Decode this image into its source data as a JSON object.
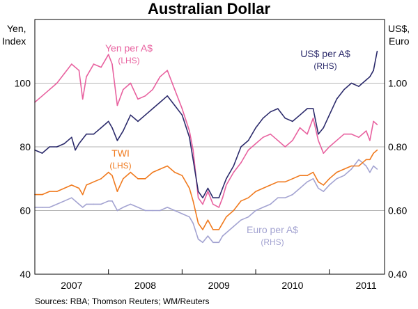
{
  "chart_data": {
    "type": "line",
    "title": "Australian Dollar",
    "left_axis": {
      "label_lines": [
        "Yen,",
        "Index"
      ],
      "range": [
        40,
        120
      ],
      "ticks": [
        40,
        60,
        80,
        100
      ]
    },
    "right_axis": {
      "label_lines": [
        "US$,",
        "Euro"
      ],
      "range": [
        0.4,
        1.2
      ],
      "ticks": [
        "0.40",
        "0.60",
        "0.80",
        "1.00"
      ],
      "tick_values": [
        0.4,
        0.6,
        0.8,
        1.0
      ]
    },
    "x_axis": {
      "range": [
        2006.5,
        2011.25
      ],
      "tick_labels": [
        "2007",
        "2008",
        "2009",
        "2010",
        "2011"
      ],
      "label_positions": [
        2007.0,
        2008.0,
        2009.0,
        2010.0,
        2011.0
      ],
      "dividers": [
        2007.5,
        2008.5,
        2009.5,
        2010.5
      ]
    },
    "grid": true,
    "source": "Sources: RBA; Thomson Reuters; WM/Reuters",
    "series": [
      {
        "name": "Yen per A$",
        "note": "(LHS)",
        "axis": "left",
        "color": "#e8619f",
        "points": [
          [
            2006.5,
            94
          ],
          [
            2006.6,
            96
          ],
          [
            2006.7,
            98
          ],
          [
            2006.8,
            100
          ],
          [
            2006.9,
            103
          ],
          [
            2007.0,
            106
          ],
          [
            2007.1,
            104
          ],
          [
            2007.15,
            95
          ],
          [
            2007.2,
            102
          ],
          [
            2007.3,
            106
          ],
          [
            2007.4,
            105
          ],
          [
            2007.5,
            109
          ],
          [
            2007.55,
            106
          ],
          [
            2007.62,
            93
          ],
          [
            2007.7,
            98
          ],
          [
            2007.8,
            100
          ],
          [
            2007.9,
            95
          ],
          [
            2008.0,
            96
          ],
          [
            2008.1,
            98
          ],
          [
            2008.2,
            102
          ],
          [
            2008.3,
            104
          ],
          [
            2008.4,
            98
          ],
          [
            2008.5,
            92
          ],
          [
            2008.6,
            85
          ],
          [
            2008.65,
            79
          ],
          [
            2008.72,
            64
          ],
          [
            2008.78,
            62
          ],
          [
            2008.85,
            66
          ],
          [
            2008.92,
            62
          ],
          [
            2009.0,
            61
          ],
          [
            2009.05,
            64
          ],
          [
            2009.1,
            68
          ],
          [
            2009.2,
            72
          ],
          [
            2009.3,
            75
          ],
          [
            2009.4,
            79
          ],
          [
            2009.5,
            81
          ],
          [
            2009.6,
            83
          ],
          [
            2009.7,
            84
          ],
          [
            2009.8,
            82
          ],
          [
            2009.9,
            80
          ],
          [
            2010.0,
            82
          ],
          [
            2010.1,
            86
          ],
          [
            2010.2,
            84
          ],
          [
            2010.28,
            89
          ],
          [
            2010.35,
            82
          ],
          [
            2010.42,
            78
          ],
          [
            2010.5,
            80
          ],
          [
            2010.6,
            82
          ],
          [
            2010.7,
            84
          ],
          [
            2010.8,
            84
          ],
          [
            2010.9,
            83
          ],
          [
            2011.0,
            85
          ],
          [
            2011.05,
            82
          ],
          [
            2011.1,
            88
          ],
          [
            2011.15,
            87
          ]
        ]
      },
      {
        "name": "US$ per A$",
        "note": "(RHS)",
        "axis": "right",
        "color": "#2b2a6b",
        "points": [
          [
            2006.5,
            0.79
          ],
          [
            2006.6,
            0.78
          ],
          [
            2006.7,
            0.8
          ],
          [
            2006.8,
            0.8
          ],
          [
            2006.9,
            0.81
          ],
          [
            2007.0,
            0.83
          ],
          [
            2007.05,
            0.79
          ],
          [
            2007.1,
            0.81
          ],
          [
            2007.2,
            0.84
          ],
          [
            2007.3,
            0.84
          ],
          [
            2007.4,
            0.86
          ],
          [
            2007.5,
            0.88
          ],
          [
            2007.55,
            0.86
          ],
          [
            2007.62,
            0.82
          ],
          [
            2007.7,
            0.85
          ],
          [
            2007.8,
            0.9
          ],
          [
            2007.9,
            0.88
          ],
          [
            2008.0,
            0.9
          ],
          [
            2008.1,
            0.92
          ],
          [
            2008.2,
            0.94
          ],
          [
            2008.3,
            0.96
          ],
          [
            2008.4,
            0.93
          ],
          [
            2008.5,
            0.9
          ],
          [
            2008.6,
            0.83
          ],
          [
            2008.65,
            0.76
          ],
          [
            2008.72,
            0.66
          ],
          [
            2008.78,
            0.64
          ],
          [
            2008.85,
            0.67
          ],
          [
            2008.92,
            0.64
          ],
          [
            2009.0,
            0.64
          ],
          [
            2009.05,
            0.67
          ],
          [
            2009.1,
            0.7
          ],
          [
            2009.2,
            0.74
          ],
          [
            2009.3,
            0.8
          ],
          [
            2009.4,
            0.82
          ],
          [
            2009.5,
            0.86
          ],
          [
            2009.6,
            0.89
          ],
          [
            2009.7,
            0.91
          ],
          [
            2009.8,
            0.92
          ],
          [
            2009.9,
            0.89
          ],
          [
            2010.0,
            0.88
          ],
          [
            2010.1,
            0.9
          ],
          [
            2010.2,
            0.92
          ],
          [
            2010.28,
            0.92
          ],
          [
            2010.35,
            0.84
          ],
          [
            2010.42,
            0.86
          ],
          [
            2010.5,
            0.9
          ],
          [
            2010.6,
            0.95
          ],
          [
            2010.7,
            0.98
          ],
          [
            2010.8,
            1.0
          ],
          [
            2010.9,
            0.99
          ],
          [
            2011.0,
            1.01
          ],
          [
            2011.05,
            1.02
          ],
          [
            2011.1,
            1.04
          ],
          [
            2011.15,
            1.1
          ]
        ]
      },
      {
        "name": "TWI",
        "note": "(LHS)",
        "axis": "left",
        "color": "#f07a1e",
        "points": [
          [
            2006.5,
            65
          ],
          [
            2006.6,
            65
          ],
          [
            2006.7,
            66
          ],
          [
            2006.8,
            66
          ],
          [
            2006.9,
            67
          ],
          [
            2007.0,
            68
          ],
          [
            2007.1,
            67
          ],
          [
            2007.15,
            65
          ],
          [
            2007.2,
            68
          ],
          [
            2007.3,
            69
          ],
          [
            2007.4,
            70
          ],
          [
            2007.5,
            72
          ],
          [
            2007.55,
            71
          ],
          [
            2007.62,
            66
          ],
          [
            2007.7,
            70
          ],
          [
            2007.8,
            72
          ],
          [
            2007.9,
            70
          ],
          [
            2008.0,
            70
          ],
          [
            2008.1,
            72
          ],
          [
            2008.2,
            73
          ],
          [
            2008.3,
            74
          ],
          [
            2008.4,
            72
          ],
          [
            2008.5,
            71
          ],
          [
            2008.6,
            67
          ],
          [
            2008.65,
            63
          ],
          [
            2008.72,
            56
          ],
          [
            2008.78,
            54
          ],
          [
            2008.85,
            57
          ],
          [
            2008.92,
            54
          ],
          [
            2009.0,
            54
          ],
          [
            2009.05,
            56
          ],
          [
            2009.1,
            58
          ],
          [
            2009.2,
            60
          ],
          [
            2009.3,
            63
          ],
          [
            2009.4,
            64
          ],
          [
            2009.5,
            66
          ],
          [
            2009.6,
            67
          ],
          [
            2009.7,
            68
          ],
          [
            2009.8,
            69
          ],
          [
            2009.9,
            69
          ],
          [
            2010.0,
            70
          ],
          [
            2010.1,
            71
          ],
          [
            2010.2,
            71
          ],
          [
            2010.28,
            72
          ],
          [
            2010.35,
            69
          ],
          [
            2010.42,
            68
          ],
          [
            2010.5,
            70
          ],
          [
            2010.6,
            72
          ],
          [
            2010.7,
            73
          ],
          [
            2010.8,
            74
          ],
          [
            2010.9,
            74
          ],
          [
            2011.0,
            76
          ],
          [
            2011.05,
            76
          ],
          [
            2011.1,
            78
          ],
          [
            2011.15,
            79
          ]
        ]
      },
      {
        "name": "Euro per A$",
        "note": "(RHS)",
        "axis": "right",
        "color": "#a3a3d1",
        "points": [
          [
            2006.5,
            0.61
          ],
          [
            2006.6,
            0.61
          ],
          [
            2006.7,
            0.61
          ],
          [
            2006.8,
            0.62
          ],
          [
            2006.9,
            0.63
          ],
          [
            2007.0,
            0.64
          ],
          [
            2007.1,
            0.62
          ],
          [
            2007.15,
            0.61
          ],
          [
            2007.2,
            0.62
          ],
          [
            2007.3,
            0.62
          ],
          [
            2007.4,
            0.62
          ],
          [
            2007.5,
            0.63
          ],
          [
            2007.55,
            0.63
          ],
          [
            2007.62,
            0.6
          ],
          [
            2007.7,
            0.61
          ],
          [
            2007.8,
            0.62
          ],
          [
            2007.9,
            0.61
          ],
          [
            2008.0,
            0.6
          ],
          [
            2008.1,
            0.6
          ],
          [
            2008.2,
            0.6
          ],
          [
            2008.3,
            0.61
          ],
          [
            2008.4,
            0.6
          ],
          [
            2008.5,
            0.59
          ],
          [
            2008.6,
            0.58
          ],
          [
            2008.65,
            0.56
          ],
          [
            2008.72,
            0.51
          ],
          [
            2008.78,
            0.5
          ],
          [
            2008.85,
            0.52
          ],
          [
            2008.92,
            0.5
          ],
          [
            2009.0,
            0.5
          ],
          [
            2009.05,
            0.52
          ],
          [
            2009.1,
            0.53
          ],
          [
            2009.2,
            0.55
          ],
          [
            2009.3,
            0.57
          ],
          [
            2009.4,
            0.58
          ],
          [
            2009.5,
            0.6
          ],
          [
            2009.6,
            0.61
          ],
          [
            2009.7,
            0.62
          ],
          [
            2009.8,
            0.64
          ],
          [
            2009.9,
            0.64
          ],
          [
            2010.0,
            0.65
          ],
          [
            2010.1,
            0.67
          ],
          [
            2010.2,
            0.69
          ],
          [
            2010.28,
            0.7
          ],
          [
            2010.35,
            0.67
          ],
          [
            2010.42,
            0.66
          ],
          [
            2010.5,
            0.68
          ],
          [
            2010.6,
            0.7
          ],
          [
            2010.7,
            0.71
          ],
          [
            2010.8,
            0.73
          ],
          [
            2010.9,
            0.76
          ],
          [
            2011.0,
            0.74
          ],
          [
            2011.05,
            0.72
          ],
          [
            2011.1,
            0.74
          ],
          [
            2011.15,
            0.73
          ]
        ]
      }
    ]
  }
}
